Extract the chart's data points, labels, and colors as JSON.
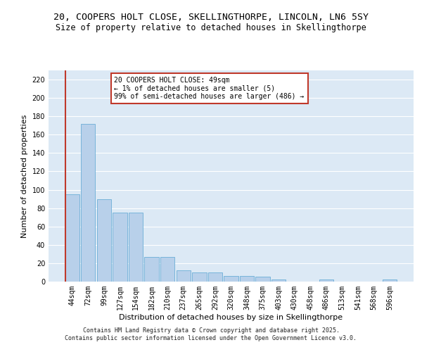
{
  "title": "20, COOPERS HOLT CLOSE, SKELLINGTHORPE, LINCOLN, LN6 5SY",
  "subtitle": "Size of property relative to detached houses in Skellingthorpe",
  "xlabel": "Distribution of detached houses by size in Skellingthorpe",
  "ylabel": "Number of detached properties",
  "categories": [
    "44sqm",
    "72sqm",
    "99sqm",
    "127sqm",
    "154sqm",
    "182sqm",
    "210sqm",
    "237sqm",
    "265sqm",
    "292sqm",
    "320sqm",
    "348sqm",
    "375sqm",
    "403sqm",
    "430sqm",
    "458sqm",
    "486sqm",
    "513sqm",
    "541sqm",
    "568sqm",
    "596sqm"
  ],
  "values": [
    95,
    172,
    90,
    75,
    75,
    27,
    27,
    12,
    10,
    10,
    6,
    6,
    5,
    2,
    0,
    0,
    2,
    0,
    0,
    0,
    2
  ],
  "bar_color": "#b8d0ea",
  "bar_edge_color": "#6baed6",
  "marker_color": "#c0392b",
  "ylim": [
    0,
    230
  ],
  "yticks": [
    0,
    20,
    40,
    60,
    80,
    100,
    120,
    140,
    160,
    180,
    200,
    220
  ],
  "annotation_line1": "20 COOPERS HOLT CLOSE: 49sqm",
  "annotation_line2": "← 1% of detached houses are smaller (5)",
  "annotation_line3": "99% of semi-detached houses are larger (486) →",
  "annotation_box_color": "#ffffff",
  "annotation_box_edge_color": "#c0392b",
  "background_color": "#dce9f5",
  "footer_line1": "Contains HM Land Registry data © Crown copyright and database right 2025.",
  "footer_line2": "Contains public sector information licensed under the Open Government Licence v3.0.",
  "title_fontsize": 9.5,
  "subtitle_fontsize": 8.5,
  "tick_fontsize": 7,
  "ylabel_fontsize": 8,
  "xlabel_fontsize": 8,
  "annotation_fontsize": 7,
  "footer_fontsize": 6
}
